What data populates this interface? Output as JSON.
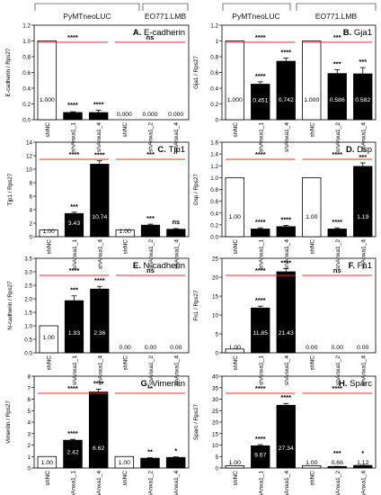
{
  "headers": {
    "left_group_1": "PyMTneoLUC",
    "left_group_2": "EO771.LMB",
    "right_group_1": "PyMTneoLUC",
    "right_group_2": "EO771.LMB"
  },
  "chart_data": [
    {
      "type": "bar",
      "panel": "A",
      "title": "E-cadherin",
      "ylabel": "E-cadherin / Rps27",
      "ylim": [
        0,
        1.2
      ],
      "yticks": [
        0,
        0.2,
        0.4,
        0.6,
        0.8,
        1.0,
        1.2
      ],
      "ytick_labels": [
        "0.0",
        "0.2",
        "0.4",
        "0.6",
        "0.8",
        "1.0",
        "1.2"
      ],
      "categories": [
        "shNC",
        "shAnxa1_1",
        "shAnxa1_4",
        "shNC",
        "shAnxa1_2",
        "shAnxa1_4"
      ],
      "values": [
        1.0,
        0.091,
        0.09,
        0.0,
        0.0,
        0.0
      ],
      "errors": [
        0,
        0.01,
        0.03,
        0,
        0,
        0
      ],
      "value_labels": [
        "1.000",
        "0.091",
        "0.090",
        "0.000",
        "0.000",
        "0.000"
      ],
      "fills": [
        "white",
        "black",
        "black",
        "white",
        "black",
        "black"
      ],
      "bar_stars": [
        "",
        "****",
        "****",
        "",
        "",
        ""
      ],
      "group_annotations": [
        {
          "text": "****",
          "from": 0,
          "to": 2
        },
        {
          "text": "ns",
          "from": 3,
          "to": 5
        }
      ]
    },
    {
      "type": "bar",
      "panel": "B",
      "title": "Gja1",
      "ylabel": "Gja1 / Rps27",
      "ylim": [
        0,
        1.2
      ],
      "yticks": [
        0,
        0.2,
        0.4,
        0.6,
        0.8,
        1.0,
        1.2
      ],
      "ytick_labels": [
        "0",
        "0.2",
        "0.4",
        "0.6",
        "0.8",
        "1",
        "1.2"
      ],
      "categories": [
        "shNC",
        "shAnxa1_1",
        "shAnxa1_4",
        "shNC",
        "shAnxa1_2",
        "shAnxa1_4"
      ],
      "values": [
        1.0,
        0.451,
        0.742,
        1.0,
        0.586,
        0.582
      ],
      "errors": [
        0,
        0.03,
        0.04,
        0,
        0.05,
        0.08
      ],
      "value_labels": [
        "1.000",
        "0.451",
        "0.742",
        "1.000",
        "0.586",
        "0.582"
      ],
      "fills": [
        "white",
        "black",
        "black",
        "white",
        "black",
        "black"
      ],
      "bar_stars": [
        "",
        "****",
        "****",
        "",
        "***",
        "***"
      ],
      "group_annotations": [
        {
          "text": "****",
          "from": 0,
          "to": 2
        },
        {
          "text": "***",
          "from": 3,
          "to": 5
        }
      ]
    },
    {
      "type": "bar",
      "panel": "C",
      "title": "Tjp1",
      "ylabel": "Tjp1 / Rps27",
      "ylim": [
        0,
        14
      ],
      "yticks": [
        0,
        2,
        4,
        6,
        8,
        10,
        12,
        14
      ],
      "ytick_labels": [
        "0",
        "2",
        "4",
        "6",
        "8",
        "10",
        "12",
        "14"
      ],
      "categories": [
        "shNC",
        "shAnxa1_1",
        "shAnxa1_4",
        "shNC",
        "shAnxa1_2",
        "shAnxa1_4"
      ],
      "values": [
        1.0,
        3.43,
        10.74,
        1.0,
        1.71,
        1.1
      ],
      "errors": [
        0,
        0.2,
        0.5,
        0,
        0.15,
        0.1
      ],
      "value_labels": [
        "1.00",
        "3.43",
        "10.74",
        "1.00",
        "1.71",
        "1.10"
      ],
      "fills": [
        "white",
        "black",
        "black",
        "white",
        "black",
        "black"
      ],
      "bar_stars": [
        "",
        "***",
        "****",
        "",
        "***",
        "ns"
      ],
      "group_annotations": [
        {
          "text": "****",
          "from": 0,
          "to": 2
        },
        {
          "text": "***",
          "from": 3,
          "to": 5
        }
      ]
    },
    {
      "type": "bar",
      "panel": "D",
      "title": "Dsp",
      "ylabel": "Dsp / Rps27",
      "ylim": [
        0,
        1.6
      ],
      "yticks": [
        0,
        0.2,
        0.4,
        0.6,
        0.8,
        1.0,
        1.2,
        1.4,
        1.6
      ],
      "ytick_labels": [
        "0.0",
        "0.2",
        "0.4",
        "0.6",
        "0.8",
        "1.0",
        "1.2",
        "1.4",
        "1.6"
      ],
      "categories": [
        "shNC",
        "shAnxa1_1",
        "shAnxa1_4",
        "shNC",
        "shAnxa1_2",
        "shAnxa1_4"
      ],
      "values": [
        1.0,
        0.13,
        0.17,
        1.0,
        0.13,
        1.19
      ],
      "errors": [
        0,
        0.02,
        0.02,
        0,
        0.02,
        0.06
      ],
      "value_labels": [
        "1.00",
        "0.13",
        "0.17",
        "1.00",
        "0.13",
        "1.19"
      ],
      "fills": [
        "white",
        "black",
        "black",
        "white",
        "black",
        "black"
      ],
      "bar_stars": [
        "",
        "****",
        "****",
        "",
        "****",
        "***"
      ],
      "group_annotations": [
        {
          "text": "****",
          "from": 0,
          "to": 2
        },
        {
          "text": "****",
          "from": 3,
          "to": 5
        }
      ]
    },
    {
      "type": "bar",
      "panel": "E",
      "title": "N-cadherin",
      "ylabel": "N-cadherin / Rps27",
      "ylim": [
        0,
        3.5
      ],
      "yticks": [
        0,
        0.5,
        1.0,
        1.5,
        2.0,
        2.5,
        3.0,
        3.5
      ],
      "ytick_labels": [
        "0.0",
        "0.5",
        "1.0",
        "1.5",
        "2.0",
        "2.5",
        "3.0",
        "3.5"
      ],
      "categories": [
        "shNC",
        "shAnxa1_1",
        "shAnxa1_4",
        "shNC",
        "shAnxa1_2",
        "shAnxa1_4"
      ],
      "values": [
        1.0,
        1.93,
        2.36,
        0.0,
        0.0,
        0.0
      ],
      "errors": [
        0,
        0.18,
        0.1,
        0,
        0,
        0
      ],
      "value_labels": [
        "1.00",
        "1.93",
        "2.36",
        "0.00",
        "0.00",
        "0.00"
      ],
      "fills": [
        "white",
        "black",
        "black",
        "white",
        "black",
        "black"
      ],
      "bar_stars": [
        "",
        "***",
        "****",
        "",
        "",
        ""
      ],
      "group_annotations": [
        {
          "text": "****",
          "from": 0,
          "to": 2
        },
        {
          "text": "ns",
          "from": 3,
          "to": 5
        }
      ]
    },
    {
      "type": "bar",
      "panel": "F",
      "title": "Fn1",
      "ylabel": "Fn1 / Rps27",
      "ylim": [
        0,
        25
      ],
      "yticks": [
        0,
        5,
        10,
        15,
        20,
        25
      ],
      "ytick_labels": [
        "0",
        "5",
        "10",
        "15",
        "20",
        "25"
      ],
      "categories": [
        "shNC",
        "shAnxa1_1",
        "shAnxa1_4",
        "shNC",
        "shAnxa1_2",
        "shAnxa1_4"
      ],
      "values": [
        1.0,
        11.85,
        21.43,
        0.0,
        0.0,
        0.0
      ],
      "errors": [
        0,
        0.5,
        0.8,
        0,
        0,
        0
      ],
      "value_labels": [
        "1.00",
        "11.85",
        "21.43",
        "0.00",
        "0.00",
        "0.00"
      ],
      "fills": [
        "white",
        "black",
        "black",
        "white",
        "black",
        "black"
      ],
      "bar_stars": [
        "",
        "****",
        "****",
        "",
        "",
        ""
      ],
      "group_annotations": [
        {
          "text": "****",
          "from": 0,
          "to": 2
        },
        {
          "text": "ns",
          "from": 3,
          "to": 5
        }
      ]
    },
    {
      "type": "bar",
      "panel": "G",
      "title": "Vimentin",
      "ylabel": "Vimentin / Rps27",
      "ylim": [
        0,
        8
      ],
      "yticks": [
        0,
        1,
        2,
        3,
        4,
        5,
        6,
        7,
        8
      ],
      "ytick_labels": [
        "0",
        "1",
        "2",
        "3",
        "4",
        "5",
        "6",
        "7",
        "8"
      ],
      "categories": [
        "shNC",
        "shAnxa1_1",
        "shAnxa1_4",
        "shNC",
        "shAnxa1_2",
        "shAnxa1_4"
      ],
      "values": [
        1.0,
        2.42,
        6.62,
        1.0,
        0.85,
        0.92
      ],
      "errors": [
        0,
        0.08,
        0.25,
        0,
        0.05,
        0.05
      ],
      "value_labels": [
        "1.00",
        "2.42",
        "6.62",
        "1.00",
        "0.85",
        "0.92"
      ],
      "fills": [
        "white",
        "black",
        "black",
        "white",
        "black",
        "black"
      ],
      "bar_stars": [
        "",
        "****",
        "****",
        "",
        "**",
        "*"
      ],
      "group_annotations": [
        {
          "text": "****",
          "from": 0,
          "to": 2
        },
        {
          "text": "**",
          "from": 3,
          "to": 5
        }
      ]
    },
    {
      "type": "bar",
      "panel": "H",
      "title": "Sparc",
      "ylabel": "Sparc / Rps27",
      "ylim": [
        0,
        40
      ],
      "yticks": [
        0,
        5,
        10,
        15,
        20,
        25,
        30,
        35,
        40
      ],
      "ytick_labels": [
        "0",
        "5",
        "10",
        "15",
        "20",
        "25",
        "30",
        "35",
        "40"
      ],
      "categories": [
        "shNC",
        "shAnxa1_1",
        "shAnxa1_4",
        "shNC",
        "shAnxa1_2",
        "shAnxa1_4"
      ],
      "values": [
        1.0,
        9.67,
        27.34,
        1.0,
        0.66,
        1.12
      ],
      "errors": [
        0,
        0.5,
        0.8,
        0,
        0.05,
        0.08
      ],
      "value_labels": [
        "1.00",
        "9.67",
        "27.34",
        "1.00",
        "0.66",
        "1.12"
      ],
      "fills": [
        "white",
        "black",
        "black",
        "white",
        "black",
        "black"
      ],
      "bar_stars": [
        "",
        "****",
        "****",
        "",
        "***",
        "*"
      ],
      "group_annotations": [
        {
          "text": "****",
          "from": 0,
          "to": 2
        },
        {
          "text": "****",
          "from": 3,
          "to": 5
        }
      ]
    }
  ]
}
